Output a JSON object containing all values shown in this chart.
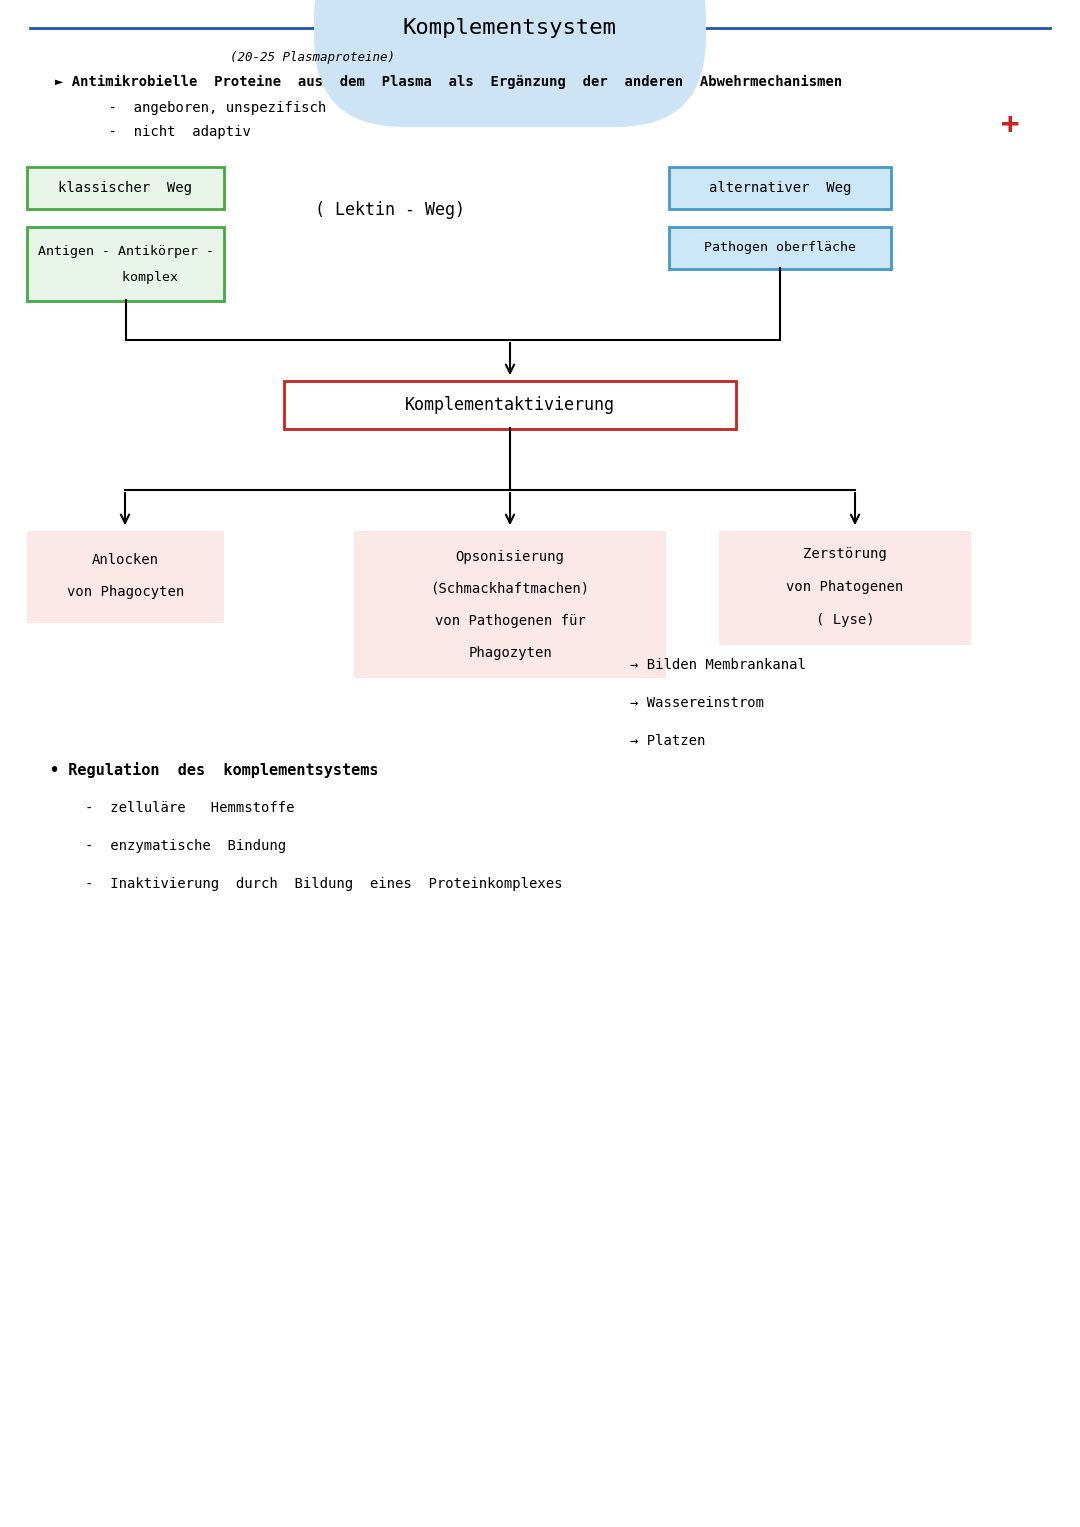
{
  "title": "Komplementsystem",
  "title_color": "#000000",
  "title_bg": "#cce4f5",
  "title_line_color": "#2255aa",
  "bg_color": "#ffffff",
  "subtitle": "(20-25 Plasmaproteine)",
  "line1": "► Antimikrobielle  Proteine  aus  dem  Plasma  als  Ergänzung  der  anderen  Abwehrmechanismen",
  "line2": "    -  angeboren, unspezifisch",
  "line3": "    -  nicht  adaptiv",
  "plus_color": "#cc2222",
  "klassischer_weg": "klassischer  Weg",
  "klassischer_box_color": "#44aa44",
  "klassischer_bg": "#e8f5e8",
  "antigen_line1": "Antigen - Antikörper -",
  "antigen_line2": "      komplex",
  "antigen_box_color": "#44aa44",
  "antigen_bg": "#e8f5e8",
  "lektin_text": "( Lektin - Weg)",
  "alternativer_weg": "alternativer  Weg",
  "alternativer_box_color": "#4499cc",
  "alternativer_bg": "#cce8f8",
  "pathogen_text": "Pathogen oberfläche",
  "pathogen_box_color": "#4499cc",
  "pathogen_bg": "#cce8f8",
  "komplementaktivierung": "Komplementaktivierung",
  "kompl_box_color": "#cc2222",
  "kompl_bg": "#ffffff",
  "anlocken_bg": "#fde8e8",
  "opsonisierung_bg": "#fde8e8",
  "zerstoerung_bg": "#fde8e8",
  "arrows_right": [
    "→ Bilden Membrankanal",
    "→ Wassereinstrom",
    "→ Platzen"
  ],
  "regulation_title": "• Regulation  des  komplementsystems",
  "regulation_items": [
    "   -  zelluläre   Hemmstoffe",
    "   -  enzymatische  Bindung",
    "   -  Inaktivierung  durch  Bildung  eines  Proteinkomplexes"
  ],
  "font_family": "monospace"
}
